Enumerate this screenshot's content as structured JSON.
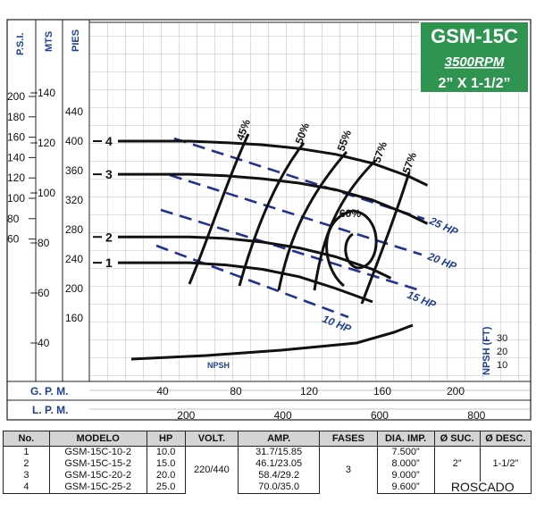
{
  "header": {
    "model": "GSM-15C",
    "rpm": "3500RPM",
    "size": "2” X 1-1/2”",
    "badge_color": "#2e9450"
  },
  "chart_data": {
    "type": "line",
    "axes": {
      "left_1_title": "P.S.I.",
      "left_1_ticks": [
        "200",
        "180",
        "160",
        "140",
        "120",
        "100",
        "80",
        "60"
      ],
      "left_2_title": "MTS",
      "left_2_ticks": [
        "140",
        "120",
        "100",
        "80",
        "60",
        "40"
      ],
      "left_3_title": "PIES",
      "left_3_ticks": [
        "440",
        "400",
        "360",
        "320",
        "280",
        "240",
        "200",
        "160"
      ],
      "x_gpm_title": "G. P. M.",
      "x_gpm_ticks": [
        "40",
        "80",
        "120",
        "160",
        "200"
      ],
      "x_lpm_title": "L. P. M.",
      "x_lpm_ticks": [
        "200",
        "400",
        "600",
        "800"
      ],
      "npsh_title": "NPSH (FT)",
      "npsh_ticks": [
        "30",
        "20",
        "10"
      ],
      "x_unit": "GPM",
      "y_unit": "PIES",
      "xlim": [
        0,
        220
      ],
      "ylim": [
        120,
        470
      ],
      "grid": true
    },
    "series": [
      {
        "name": "4",
        "x": [
          0,
          40,
          60,
          80,
          100,
          120,
          140,
          160,
          170
        ],
        "y": [
          400,
          400,
          398,
          395,
          390,
          382,
          370,
          352,
          340
        ]
      },
      {
        "name": "3",
        "x": [
          0,
          40,
          60,
          80,
          100,
          120,
          140,
          160,
          170
        ],
        "y": [
          355,
          355,
          353,
          349,
          343,
          334,
          320,
          300,
          288
        ]
      },
      {
        "name": "2",
        "x": [
          0,
          40,
          60,
          80,
          100,
          120,
          140,
          150
        ],
        "y": [
          270,
          270,
          268,
          263,
          255,
          243,
          226,
          214
        ]
      },
      {
        "name": "1",
        "x": [
          0,
          40,
          60,
          80,
          100,
          120,
          140
        ],
        "y": [
          235,
          235,
          232,
          226,
          216,
          200,
          182
        ]
      }
    ],
    "npsh": {
      "label": "NPSH",
      "x": [
        20,
        60,
        100,
        140,
        160,
        170
      ],
      "y": [
        10,
        12,
        15,
        19,
        25,
        29
      ]
    },
    "efficiency_labels": [
      "45%",
      "50%",
      "55%",
      "57%",
      "57%",
      "60%"
    ],
    "hp_labels": [
      "25 HP",
      "20 HP",
      "15 HP",
      "10 HP"
    ]
  },
  "table": {
    "headers": [
      "No.",
      "MODELO",
      "HP",
      "VOLT.",
      "AMP.",
      "FASES",
      "DIA. IMP.",
      "Ø SUC.",
      "Ø DESC."
    ],
    "rows": [
      {
        "no": "1",
        "modelo": "GSM-15C-10-2",
        "hp": "10.0",
        "amp": "31.7/15.85",
        "dia": "7.500”"
      },
      {
        "no": "2",
        "modelo": "GSM-15C-15-2",
        "hp": "15.0",
        "amp": "46.1/23.05",
        "dia": "8.000”"
      },
      {
        "no": "3",
        "modelo": "GSM-15C-20-2",
        "hp": "20.0",
        "amp": "58.4/29.2",
        "dia": "9.000”"
      },
      {
        "no": "4",
        "modelo": "GSM-15C-25-2",
        "hp": "25.0",
        "amp": "70.0/35.0",
        "dia": "9.600”"
      }
    ],
    "volt": "220/440",
    "fases": "3",
    "suc": "2”",
    "desc": "1-1/2”",
    "roscado": "ROSCADO"
  }
}
